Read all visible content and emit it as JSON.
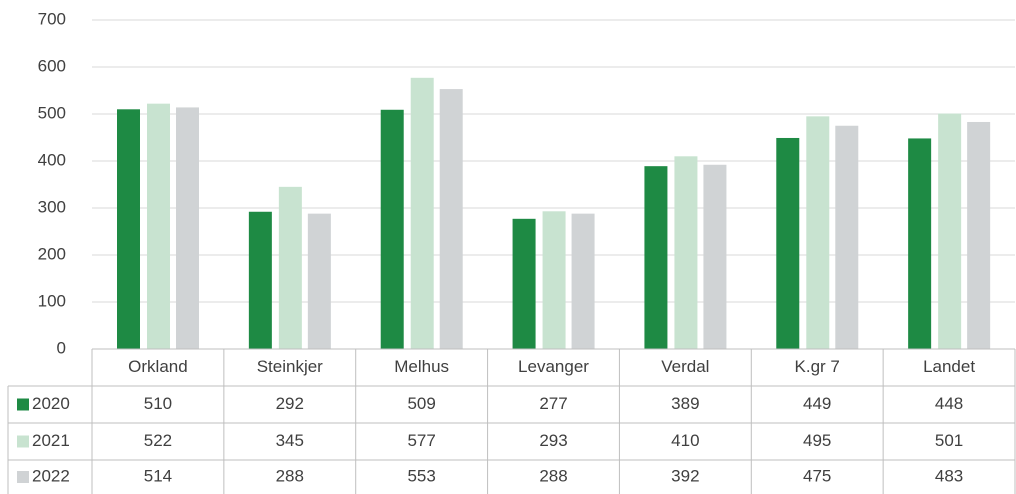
{
  "chart_data": {
    "type": "bar",
    "categories": [
      "Orkland",
      "Steinkjer",
      "Melhus",
      "Levanger",
      "Verdal",
      "K.gr 7",
      "Landet"
    ],
    "series": [
      {
        "name": "2020",
        "color": "#1e8a44",
        "values": [
          510,
          292,
          509,
          277,
          389,
          449,
          448
        ]
      },
      {
        "name": "2021",
        "color": "#c8e3d0",
        "values": [
          522,
          345,
          577,
          293,
          410,
          495,
          501
        ]
      },
      {
        "name": "2022",
        "color": "#d0d3d5",
        "values": [
          514,
          288,
          553,
          288,
          392,
          475,
          483
        ]
      }
    ],
    "ylim": [
      0,
      700
    ],
    "yticks": [
      0,
      100,
      200,
      300,
      400,
      500,
      600,
      700
    ],
    "grid": true
  }
}
